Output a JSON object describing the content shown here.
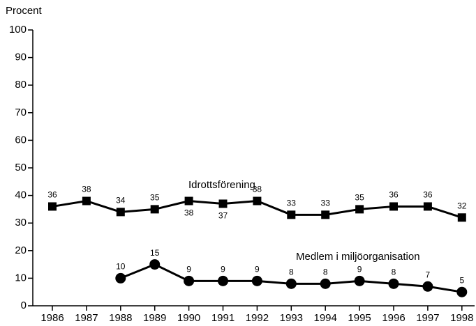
{
  "chart_data": {
    "type": "line",
    "y_label": "Procent",
    "categories": [
      "1986",
      "1987",
      "1988",
      "1989",
      "1990",
      "1991",
      "1992",
      "1993",
      "1994",
      "1995",
      "1996",
      "1997",
      "1998"
    ],
    "series": [
      {
        "name": "Idrottsförening",
        "color": "#000000",
        "marker": "square",
        "values": [
          36,
          38,
          34,
          35,
          38,
          37,
          38,
          33,
          33,
          35,
          36,
          36,
          32
        ]
      },
      {
        "name": "Medlem i miljöorganisation",
        "color": "#000000",
        "marker": "circle",
        "values": [
          null,
          null,
          10,
          15,
          9,
          9,
          9,
          8,
          8,
          9,
          8,
          7,
          5
        ]
      }
    ],
    "ylim": [
      0,
      100
    ],
    "yticks": [
      0,
      10,
      20,
      30,
      40,
      50,
      60,
      70,
      80,
      90,
      100
    ],
    "grid": false
  }
}
